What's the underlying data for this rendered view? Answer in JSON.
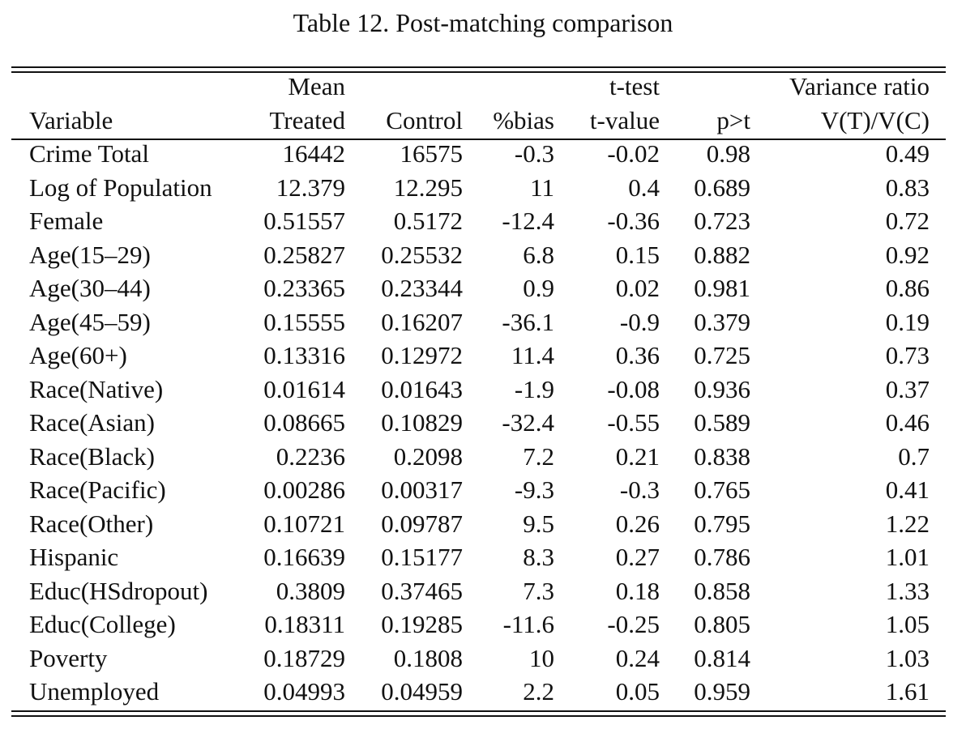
{
  "caption": "Table 12. Post-matching comparison",
  "header": {
    "group_mean": "Mean",
    "group_ttest": "t-test",
    "group_vr": "Variance ratio",
    "col_variable": "Variable",
    "col_treated": "Treated",
    "col_control": "Control",
    "col_bias": "%bias",
    "col_tvalue": "t-value",
    "col_p": "p>t",
    "col_vr": "V(T)/V(C)"
  },
  "rows": [
    {
      "variable": "Crime Total",
      "treated": "16442",
      "control": "16575",
      "bias": "-0.3",
      "tvalue": "-0.02",
      "p": "0.98",
      "vr": "0.49"
    },
    {
      "variable": "Log of Population",
      "treated": "12.379",
      "control": "12.295",
      "bias": "11",
      "tvalue": "0.4",
      "p": "0.689",
      "vr": "0.83"
    },
    {
      "variable": "Female",
      "treated": "0.51557",
      "control": "0.5172",
      "bias": "-12.4",
      "tvalue": "-0.36",
      "p": "0.723",
      "vr": "0.72"
    },
    {
      "variable": "Age(15–29)",
      "treated": "0.25827",
      "control": "0.25532",
      "bias": "6.8",
      "tvalue": "0.15",
      "p": "0.882",
      "vr": "0.92"
    },
    {
      "variable": "Age(30–44)",
      "treated": "0.23365",
      "control": "0.23344",
      "bias": "0.9",
      "tvalue": "0.02",
      "p": "0.981",
      "vr": "0.86"
    },
    {
      "variable": "Age(45–59)",
      "treated": "0.15555",
      "control": "0.16207",
      "bias": "-36.1",
      "tvalue": "-0.9",
      "p": "0.379",
      "vr": "0.19"
    },
    {
      "variable": "Age(60+)",
      "treated": "0.13316",
      "control": "0.12972",
      "bias": "11.4",
      "tvalue": "0.36",
      "p": "0.725",
      "vr": "0.73"
    },
    {
      "variable": "Race(Native)",
      "treated": "0.01614",
      "control": "0.01643",
      "bias": "-1.9",
      "tvalue": "-0.08",
      "p": "0.936",
      "vr": "0.37"
    },
    {
      "variable": "Race(Asian)",
      "treated": "0.08665",
      "control": "0.10829",
      "bias": "-32.4",
      "tvalue": "-0.55",
      "p": "0.589",
      "vr": "0.46"
    },
    {
      "variable": "Race(Black)",
      "treated": "0.2236",
      "control": "0.2098",
      "bias": "7.2",
      "tvalue": "0.21",
      "p": "0.838",
      "vr": "0.7"
    },
    {
      "variable": "Race(Pacific)",
      "treated": "0.00286",
      "control": "0.00317",
      "bias": "-9.3",
      "tvalue": "-0.3",
      "p": "0.765",
      "vr": "0.41"
    },
    {
      "variable": "Race(Other)",
      "treated": "0.10721",
      "control": "0.09787",
      "bias": "9.5",
      "tvalue": "0.26",
      "p": "0.795",
      "vr": "1.22"
    },
    {
      "variable": "Hispanic",
      "treated": "0.16639",
      "control": "0.15177",
      "bias": "8.3",
      "tvalue": "0.27",
      "p": "0.786",
      "vr": "1.01"
    },
    {
      "variable": "Educ(HSdropout)",
      "treated": "0.3809",
      "control": "0.37465",
      "bias": "7.3",
      "tvalue": "0.18",
      "p": "0.858",
      "vr": "1.33"
    },
    {
      "variable": "Educ(College)",
      "treated": "0.18311",
      "control": "0.19285",
      "bias": "-11.6",
      "tvalue": "-0.25",
      "p": "0.805",
      "vr": "1.05"
    },
    {
      "variable": "Poverty",
      "treated": "0.18729",
      "control": "0.1808",
      "bias": "10",
      "tvalue": "0.24",
      "p": "0.814",
      "vr": "1.03"
    },
    {
      "variable": "Unemployed",
      "treated": "0.04993",
      "control": "0.04959",
      "bias": "2.2",
      "tvalue": "0.05",
      "p": "0.959",
      "vr": "1.61"
    }
  ]
}
